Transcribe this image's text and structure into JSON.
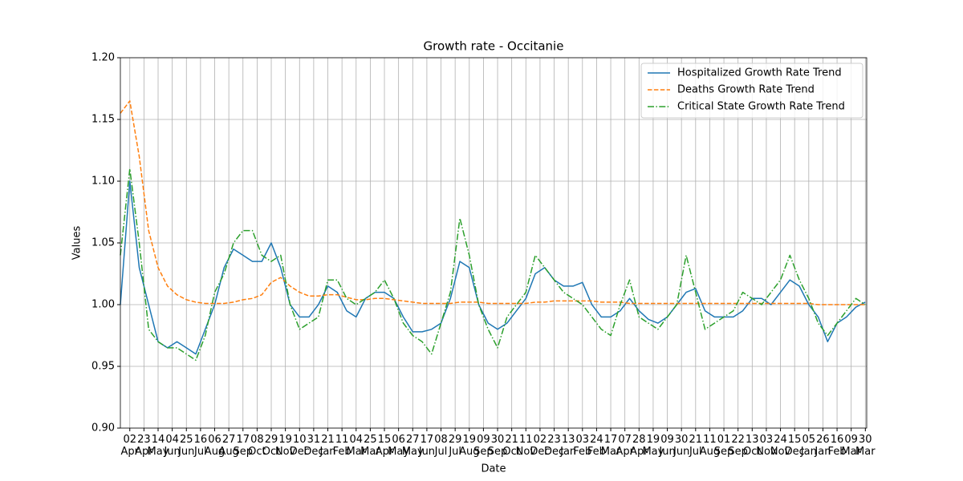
{
  "chart_data": {
    "type": "line",
    "title": "Growth rate - Occitanie",
    "xlabel": "Date",
    "ylabel": "Values",
    "x": [
      "2020-03-19",
      "2020-04-02",
      "2020-04-16",
      "2020-04-30",
      "2020-05-14",
      "2020-05-28",
      "2020-06-11",
      "2020-06-25",
      "2020-07-09",
      "2020-07-23",
      "2020-08-06",
      "2020-08-20",
      "2020-09-03",
      "2020-09-17",
      "2020-10-01",
      "2020-10-15",
      "2020-10-29",
      "2020-11-12",
      "2020-11-26",
      "2020-12-10",
      "2020-12-24",
      "2021-01-07",
      "2021-01-21",
      "2021-02-04",
      "2021-02-18",
      "2021-03-04",
      "2021-03-18",
      "2021-04-01",
      "2021-04-15",
      "2021-04-29",
      "2021-05-13",
      "2021-05-27",
      "2021-06-10",
      "2021-06-24",
      "2021-07-08",
      "2021-07-22",
      "2021-08-05",
      "2021-08-19",
      "2021-09-02",
      "2021-09-16",
      "2021-09-30",
      "2021-10-14",
      "2021-10-28",
      "2021-11-11",
      "2021-11-25",
      "2021-12-09",
      "2021-12-23",
      "2022-01-06",
      "2022-01-20",
      "2022-02-03",
      "2022-02-17",
      "2022-03-03",
      "2022-03-17",
      "2022-03-31",
      "2022-04-14",
      "2022-04-28",
      "2022-05-12",
      "2022-05-26",
      "2022-06-09",
      "2022-06-23",
      "2022-07-07",
      "2022-07-21",
      "2022-08-04",
      "2022-08-18",
      "2022-09-01",
      "2022-09-15",
      "2022-09-29",
      "2022-10-13",
      "2022-10-27",
      "2022-11-10",
      "2022-11-24",
      "2022-12-08",
      "2022-12-22",
      "2023-01-05",
      "2023-01-19",
      "2023-02-02",
      "2023-02-16",
      "2023-03-02",
      "2023-03-16",
      "2023-03-30"
    ],
    "series": [
      {
        "name": "Hospitalized Growth Rate Trend",
        "color": "#1f77b4",
        "style": "solid",
        "values": [
          1.0,
          1.1,
          1.03,
          1.0,
          0.97,
          0.965,
          0.97,
          0.965,
          0.96,
          0.98,
          1.0,
          1.03,
          1.045,
          1.04,
          1.035,
          1.035,
          1.05,
          1.03,
          1.0,
          0.99,
          0.99,
          1.0,
          1.015,
          1.01,
          0.995,
          0.99,
          1.005,
          1.01,
          1.01,
          1.005,
          0.99,
          0.978,
          0.978,
          0.98,
          0.985,
          1.005,
          1.035,
          1.03,
          1.0,
          0.985,
          0.98,
          0.985,
          0.995,
          1.005,
          1.025,
          1.03,
          1.02,
          1.015,
          1.015,
          1.018,
          1.0,
          0.99,
          0.99,
          0.995,
          1.005,
          0.995,
          0.988,
          0.985,
          0.99,
          1.0,
          1.01,
          1.013,
          0.995,
          0.99,
          0.99,
          0.99,
          0.995,
          1.005,
          1.005,
          1.0,
          1.01,
          1.02,
          1.015,
          1.0,
          0.99,
          0.97,
          0.985,
          0.99,
          0.998,
          1.002
        ]
      },
      {
        "name": "Deaths Growth Rate Trend",
        "color": "#ff7f0e",
        "style": "dashed",
        "values": [
          1.155,
          1.165,
          1.12,
          1.06,
          1.03,
          1.015,
          1.008,
          1.004,
          1.002,
          1.001,
          1.001,
          1.001,
          1.002,
          1.004,
          1.005,
          1.008,
          1.018,
          1.022,
          1.015,
          1.01,
          1.007,
          1.007,
          1.008,
          1.008,
          1.006,
          1.004,
          1.004,
          1.005,
          1.005,
          1.004,
          1.003,
          1.002,
          1.001,
          1.001,
          1.001,
          1.001,
          1.002,
          1.002,
          1.002,
          1.001,
          1.001,
          1.001,
          1.001,
          1.001,
          1.002,
          1.002,
          1.003,
          1.003,
          1.003,
          1.003,
          1.003,
          1.002,
          1.002,
          1.002,
          1.001,
          1.001,
          1.001,
          1.001,
          1.001,
          1.001,
          1.001,
          1.001,
          1.001,
          1.001,
          1.001,
          1.001,
          1.001,
          1.001,
          1.001,
          1.001,
          1.001,
          1.001,
          1.001,
          1.001,
          1.0,
          1.0,
          1.0,
          1.0,
          1.0,
          1.0
        ]
      },
      {
        "name": "Critical State Growth Rate Trend",
        "color": "#2ca02c",
        "style": "dashdot",
        "values": [
          1.04,
          1.11,
          1.05,
          0.98,
          0.97,
          0.965,
          0.965,
          0.96,
          0.955,
          0.975,
          1.01,
          1.025,
          1.05,
          1.06,
          1.06,
          1.04,
          1.035,
          1.04,
          1.0,
          0.98,
          0.985,
          0.99,
          1.02,
          1.02,
          1.005,
          1.0,
          1.005,
          1.01,
          1.02,
          1.005,
          0.985,
          0.975,
          0.97,
          0.96,
          0.985,
          1.01,
          1.07,
          1.04,
          1.0,
          0.98,
          0.965,
          0.99,
          1.0,
          1.01,
          1.04,
          1.03,
          1.02,
          1.01,
          1.005,
          1.0,
          0.99,
          0.98,
          0.975,
          1.0,
          1.02,
          0.99,
          0.985,
          0.98,
          0.99,
          1.0,
          1.04,
          1.01,
          0.98,
          0.985,
          0.99,
          0.995,
          1.01,
          1.005,
          1.0,
          1.01,
          1.02,
          1.04,
          1.02,
          1.005,
          0.985,
          0.975,
          0.985,
          0.995,
          1.005,
          1.0
        ]
      }
    ],
    "xlim": [
      "2020-03-19",
      "2023-04-01"
    ],
    "xticks": [
      {
        "value": "2020-04-02",
        "label": "02\nApr"
      },
      {
        "value": "2020-04-23",
        "label": "23\nApr"
      },
      {
        "value": "2020-05-14",
        "label": "14\nMay"
      },
      {
        "value": "2020-06-04",
        "label": "04\nJun"
      },
      {
        "value": "2020-06-25",
        "label": "25\nJun"
      },
      {
        "value": "2020-07-16",
        "label": "16\nJul"
      },
      {
        "value": "2020-08-06",
        "label": "06\nAug"
      },
      {
        "value": "2020-08-27",
        "label": "27\nAug"
      },
      {
        "value": "2020-09-17",
        "label": "17\nSep"
      },
      {
        "value": "2020-10-08",
        "label": "08\nOct"
      },
      {
        "value": "2020-10-29",
        "label": "29\nOct"
      },
      {
        "value": "2020-11-19",
        "label": "19\nNov"
      },
      {
        "value": "2020-12-10",
        "label": "10\nDec"
      },
      {
        "value": "2020-12-31",
        "label": "31\nDec"
      },
      {
        "value": "2021-01-21",
        "label": "21\nJan"
      },
      {
        "value": "2021-02-11",
        "label": "11\nFeb"
      },
      {
        "value": "2021-03-04",
        "label": "04\nMar"
      },
      {
        "value": "2021-03-25",
        "label": "25\nMar"
      },
      {
        "value": "2021-04-15",
        "label": "15\nApr"
      },
      {
        "value": "2021-05-06",
        "label": "06\nMay"
      },
      {
        "value": "2021-05-27",
        "label": "27\nMay"
      },
      {
        "value": "2021-06-17",
        "label": "17\nJun"
      },
      {
        "value": "2021-07-08",
        "label": "08\nJul"
      },
      {
        "value": "2021-07-29",
        "label": "29\nJul"
      },
      {
        "value": "2021-08-19",
        "label": "19\nAug"
      },
      {
        "value": "2021-09-09",
        "label": "09\nSep"
      },
      {
        "value": "2021-09-30",
        "label": "30\nSep"
      },
      {
        "value": "2021-10-21",
        "label": "21\nOct"
      },
      {
        "value": "2021-11-11",
        "label": "11\nNov"
      },
      {
        "value": "2021-12-02",
        "label": "02\nDec"
      },
      {
        "value": "2021-12-23",
        "label": "23\nDec"
      },
      {
        "value": "2022-01-13",
        "label": "13\nJan"
      },
      {
        "value": "2022-02-03",
        "label": "03\nFeb"
      },
      {
        "value": "2022-02-24",
        "label": "24\nFeb"
      },
      {
        "value": "2022-03-17",
        "label": "17\nMar"
      },
      {
        "value": "2022-04-07",
        "label": "07\nApr"
      },
      {
        "value": "2022-04-28",
        "label": "28\nApr"
      },
      {
        "value": "2022-05-19",
        "label": "19\nMay"
      },
      {
        "value": "2022-06-09",
        "label": "09\nJun"
      },
      {
        "value": "2022-06-30",
        "label": "30\nJun"
      },
      {
        "value": "2022-07-21",
        "label": "21\nJul"
      },
      {
        "value": "2022-08-11",
        "label": "11\nAug"
      },
      {
        "value": "2022-09-01",
        "label": "01\nSep"
      },
      {
        "value": "2022-09-22",
        "label": "22\nSep"
      },
      {
        "value": "2022-10-13",
        "label": "13\nOct"
      },
      {
        "value": "2022-11-03",
        "label": "03\nNov"
      },
      {
        "value": "2022-11-24",
        "label": "24\nNov"
      },
      {
        "value": "2022-12-15",
        "label": "15\nDec"
      },
      {
        "value": "2023-01-05",
        "label": "05\nJan"
      },
      {
        "value": "2023-01-26",
        "label": "26\nJan"
      },
      {
        "value": "2023-02-16",
        "label": "16\nFeb"
      },
      {
        "value": "2023-03-09",
        "label": "09\nMar"
      },
      {
        "value": "2023-03-30",
        "label": "30\nMar"
      }
    ],
    "ylim": [
      0.9,
      1.2
    ],
    "yticks": [
      {
        "value": 0.9,
        "label": "0.90"
      },
      {
        "value": 0.95,
        "label": "0.95"
      },
      {
        "value": 1.0,
        "label": "1.00"
      },
      {
        "value": 1.05,
        "label": "1.05"
      },
      {
        "value": 1.1,
        "label": "1.10"
      },
      {
        "value": 1.15,
        "label": "1.15"
      },
      {
        "value": 1.2,
        "label": "1.20"
      }
    ],
    "grid": true,
    "legend": "upper right"
  }
}
